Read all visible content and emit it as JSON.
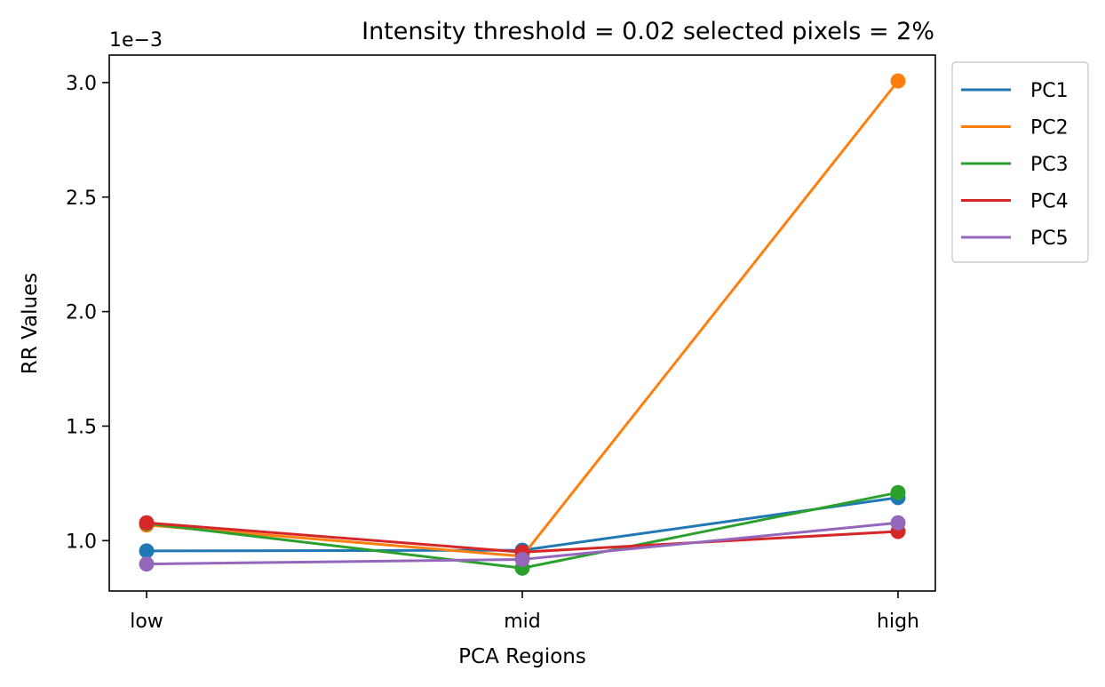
{
  "chart_data": {
    "type": "line",
    "title": "Intensity threshold = 0.02 selected pixels = 2%",
    "xlabel": "PCA Regions",
    "ylabel": "RR Values",
    "y_offset_text": "1e−3",
    "categories": [
      "low",
      "mid",
      "high"
    ],
    "ylim": [
      0.00078,
      0.00312
    ],
    "yticks": [
      0.001,
      0.0015,
      0.002,
      0.0025,
      0.003
    ],
    "ytick_labels": [
      "1.0",
      "1.5",
      "2.0",
      "2.5",
      "3.0"
    ],
    "grid": false,
    "legend_position": "outside-top-right",
    "markers": true,
    "series": [
      {
        "name": "PC1",
        "color": "#1f77b4",
        "values": [
          0.000955,
          0.000958,
          0.001188
        ]
      },
      {
        "name": "PC2",
        "color": "#ff7f0e",
        "values": [
          0.001068,
          0.000932,
          0.003007
        ]
      },
      {
        "name": "PC3",
        "color": "#2ca02c",
        "values": [
          0.001075,
          0.00088,
          0.00121
        ]
      },
      {
        "name": "PC4",
        "color": "#d62728",
        "values": [
          0.001078,
          0.00095,
          0.00104
        ]
      },
      {
        "name": "PC5",
        "color": "#9467bd",
        "values": [
          0.000898,
          0.000918,
          0.001078
        ]
      }
    ]
  }
}
